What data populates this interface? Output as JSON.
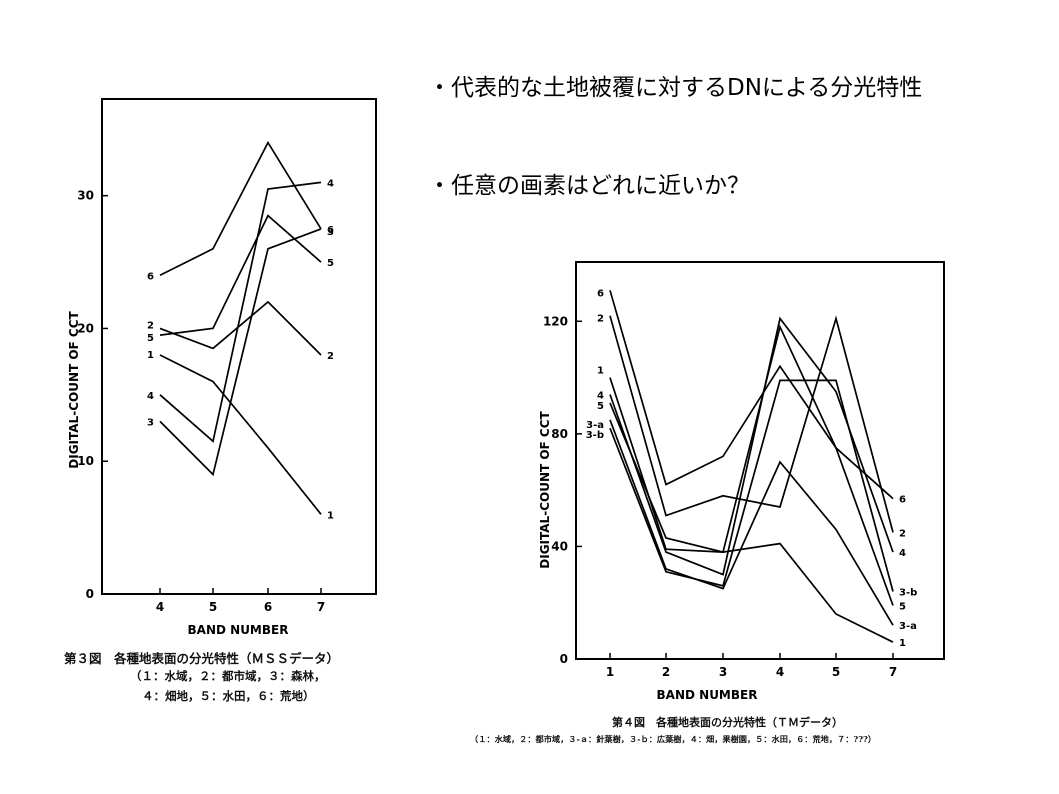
{
  "bullets": [
    "・代表的な土地被覆に対するDNによる分光特性",
    "・任意の画素はどれに近いか？"
  ],
  "chart_data": [
    {
      "type": "line",
      "xlabel": "BAND NUMBER",
      "ylabel": "DIGITAL-COUNT OF CCT",
      "categories": [
        "4",
        "5",
        "6",
        "7"
      ],
      "yticks": [
        "0",
        "10",
        "20",
        "30"
      ],
      "ylim": [
        0,
        36
      ],
      "grid": false,
      "series": [
        {
          "name": "1",
          "values": [
            18,
            16,
            11,
            6
          ]
        },
        {
          "name": "2",
          "values": [
            20,
            18.5,
            22,
            18
          ]
        },
        {
          "name": "3",
          "values": [
            13,
            9,
            26,
            27.5
          ]
        },
        {
          "name": "4",
          "values": [
            15,
            11.5,
            30.5,
            31
          ]
        },
        {
          "name": "5",
          "values": [
            19.5,
            20,
            28.5,
            25
          ]
        },
        {
          "name": "6",
          "values": [
            24,
            26,
            34,
            27.5
          ]
        }
      ],
      "caption": [
        "第３図　各種地表面の分光特性（ＭＳＳデータ）",
        "（１：水域，２：都市域，３：森林，",
        "４：畑地，５：水田，６：荒地）"
      ]
    },
    {
      "type": "line",
      "xlabel": "BAND NUMBER",
      "ylabel": "DIGITAL-COUNT OF CCT",
      "categories": [
        "1",
        "2",
        "3",
        "4",
        "5",
        "7"
      ],
      "yticks": [
        "0",
        "40",
        "80",
        "120"
      ],
      "ylim": [
        0,
        140
      ],
      "grid": false,
      "series": [
        {
          "name": "1",
          "values": [
            100,
            39,
            38,
            41,
            16,
            6
          ]
        },
        {
          "name": "2",
          "values": [
            122,
            51,
            58,
            54,
            121,
            45
          ]
        },
        {
          "name": "3-a",
          "values": [
            85,
            32,
            25,
            70,
            46,
            12
          ]
        },
        {
          "name": "3-b",
          "values": [
            82,
            31,
            26,
            99,
            99,
            24
          ]
        },
        {
          "name": "4",
          "values": [
            94,
            38,
            30,
            121,
            95,
            38
          ]
        },
        {
          "name": "5",
          "values": [
            91,
            43,
            38,
            118,
            75,
            19
          ]
        },
        {
          "name": "6",
          "values": [
            131,
            62,
            72,
            104,
            75,
            57
          ]
        }
      ],
      "caption": [
        "第４図　各種地表面の分光特性（ＴＭデータ）",
        "（１：水域，２：都市域，３-ａ：針葉樹，３-ｂ：広葉樹，４：畑，果樹園，５：水田，６：荒地，７：???）"
      ]
    }
  ]
}
